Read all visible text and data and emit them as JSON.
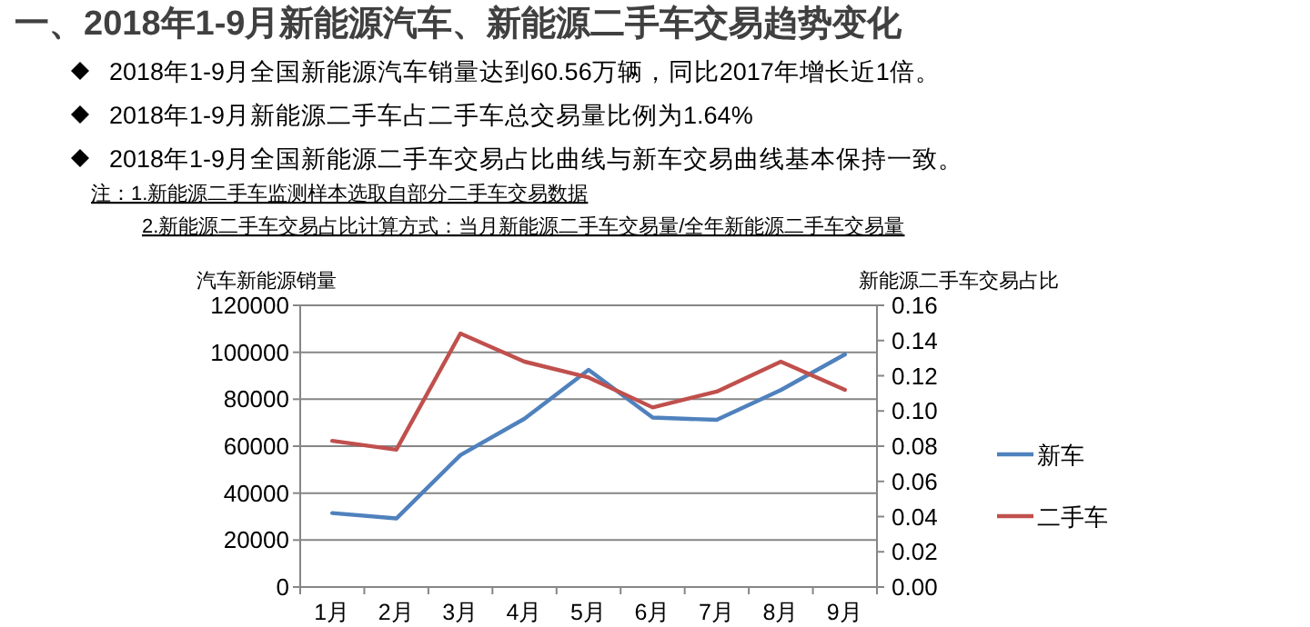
{
  "chart_data": {
    "type": "line",
    "title": "一、2018年1-9月新能源汽车、新能源二手车交易趋势变化",
    "annotations": [
      "2018年1-9月全国新能源汽车销量达到60.56万辆，同比2017年增长近1倍。",
      "2018年1-9月新能源二手车占二手车总交易量比例为1.64%",
      "2018年1-9月全国新能源二手车交易占比曲线与新车交易曲线基本保持一致。",
      "注：1.新能源二手车监测样本选取自部分二手车交易数据",
      "2.新能源二手车交易占比计算方式：当月新能源二手车交易量/全年新能源二手车交易量"
    ],
    "ylabel": "汽车新能源销量",
    "y2label": "新能源二手车交易占比",
    "categories": [
      "1月",
      "2月",
      "3月",
      "4月",
      "5月",
      "6月",
      "7月",
      "8月",
      "9月"
    ],
    "series": [
      {
        "name": "新车",
        "color": "#4f81bd",
        "values": [
          31500,
          29200,
          56200,
          71700,
          92500,
          72200,
          71200,
          83900,
          99100
        ]
      },
      {
        "name": "二手车",
        "color": "#c0504d",
        "axis": "y2",
        "values": [
          0.083,
          0.078,
          0.144,
          0.128,
          0.119,
          0.102,
          0.111,
          0.128,
          0.112
        ]
      }
    ],
    "ylim": [
      0,
      120000
    ],
    "yticks": [
      0,
      20000,
      40000,
      60000,
      80000,
      100000,
      120000
    ],
    "y2lim": [
      0,
      0.16
    ],
    "y2ticks": [
      {
        "value": 0,
        "label": "0.00"
      },
      {
        "value": 0.02,
        "label": "0.02"
      },
      {
        "value": 0.04,
        "label": "0.04"
      },
      {
        "value": 0.06,
        "label": "0.06"
      },
      {
        "value": 0.08,
        "label": "0.08"
      },
      {
        "value": 0.1,
        "label": "0.10"
      },
      {
        "value": 0.12,
        "label": "0.12"
      },
      {
        "value": 0.14,
        "label": "0.14"
      },
      {
        "value": 0.16,
        "label": "0.16"
      }
    ],
    "grid": "y",
    "legend": "right",
    "line_style": "solid"
  }
}
